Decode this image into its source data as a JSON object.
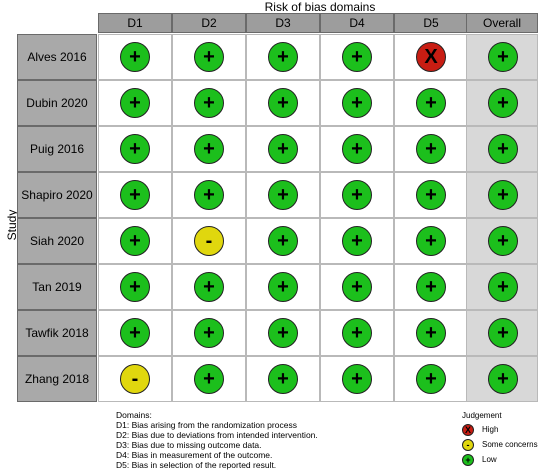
{
  "title": "Risk of bias domains",
  "row_axis_label": "Study",
  "columns": [
    "D1",
    "D2",
    "D3",
    "D4",
    "D5",
    "Overall"
  ],
  "studies": [
    {
      "name": "Alves 2016",
      "judgements": [
        "low",
        "low",
        "low",
        "low",
        "high",
        "low"
      ]
    },
    {
      "name": "Dubin 2020",
      "judgements": [
        "low",
        "low",
        "low",
        "low",
        "low",
        "low"
      ]
    },
    {
      "name": "Puig 2016",
      "judgements": [
        "low",
        "low",
        "low",
        "low",
        "low",
        "low"
      ]
    },
    {
      "name": "Shapiro 2020",
      "judgements": [
        "low",
        "low",
        "low",
        "low",
        "low",
        "low"
      ]
    },
    {
      "name": "Siah 2020",
      "judgements": [
        "low",
        "some",
        "low",
        "low",
        "low",
        "low"
      ]
    },
    {
      "name": "Tan 2019",
      "judgements": [
        "low",
        "low",
        "low",
        "low",
        "low",
        "low"
      ]
    },
    {
      "name": "Tawfik 2018",
      "judgements": [
        "low",
        "low",
        "low",
        "low",
        "low",
        "low"
      ]
    },
    {
      "name": "Zhang 2018",
      "judgements": [
        "some",
        "low",
        "low",
        "low",
        "low",
        "low"
      ]
    }
  ],
  "symbols": {
    "low": "+",
    "some": "-",
    "high": "X"
  },
  "colors": {
    "low": "#1cbf1c",
    "some": "#e0d70e",
    "high": "#c81d13",
    "header": "#9d9d9d",
    "overall_bg": "#d8d8d8"
  },
  "domains": {
    "heading": "Domains:",
    "items": [
      "D1: Bias arising from the randomization process",
      "D2: Bias due to deviations from intended intervention.",
      "D3: Bias due to missing outcome data.",
      "D4: Bias in measurement of the outcome.",
      "D5: Bias in selection of the reported result."
    ]
  },
  "legend": {
    "title": "Judgement",
    "items": [
      {
        "key": "high",
        "label": "High"
      },
      {
        "key": "some",
        "label": "Some concerns"
      },
      {
        "key": "low",
        "label": "Low"
      }
    ]
  }
}
